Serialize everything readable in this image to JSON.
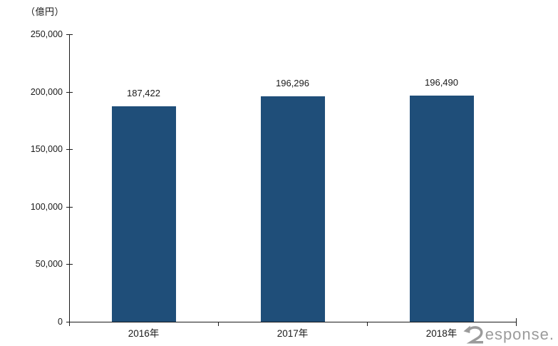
{
  "chart_data": {
    "type": "bar",
    "title": "",
    "unit_label": "（億円）",
    "categories": [
      "2016年",
      "2017年",
      "2018年"
    ],
    "values": [
      187422,
      196296,
      196490
    ],
    "value_labels": [
      "187,422",
      "196,296",
      "196,490"
    ],
    "ylim": [
      0,
      250000
    ],
    "yticks": [
      0,
      50000,
      100000,
      150000,
      200000,
      250000
    ],
    "ytick_labels": [
      "0",
      "50,000",
      "100,000",
      "150,000",
      "200,000",
      "250,000"
    ],
    "xlabel": "",
    "ylabel": "（億円）",
    "grid": false,
    "legend": "none",
    "bar_color": "#1F4E79",
    "axis_color": "#1a1a1a",
    "text_color": "#1a1a1a"
  },
  "watermark": {
    "brand": "Response.",
    "text_after_glyph": "esponse.",
    "color": "#9b9b9b"
  }
}
